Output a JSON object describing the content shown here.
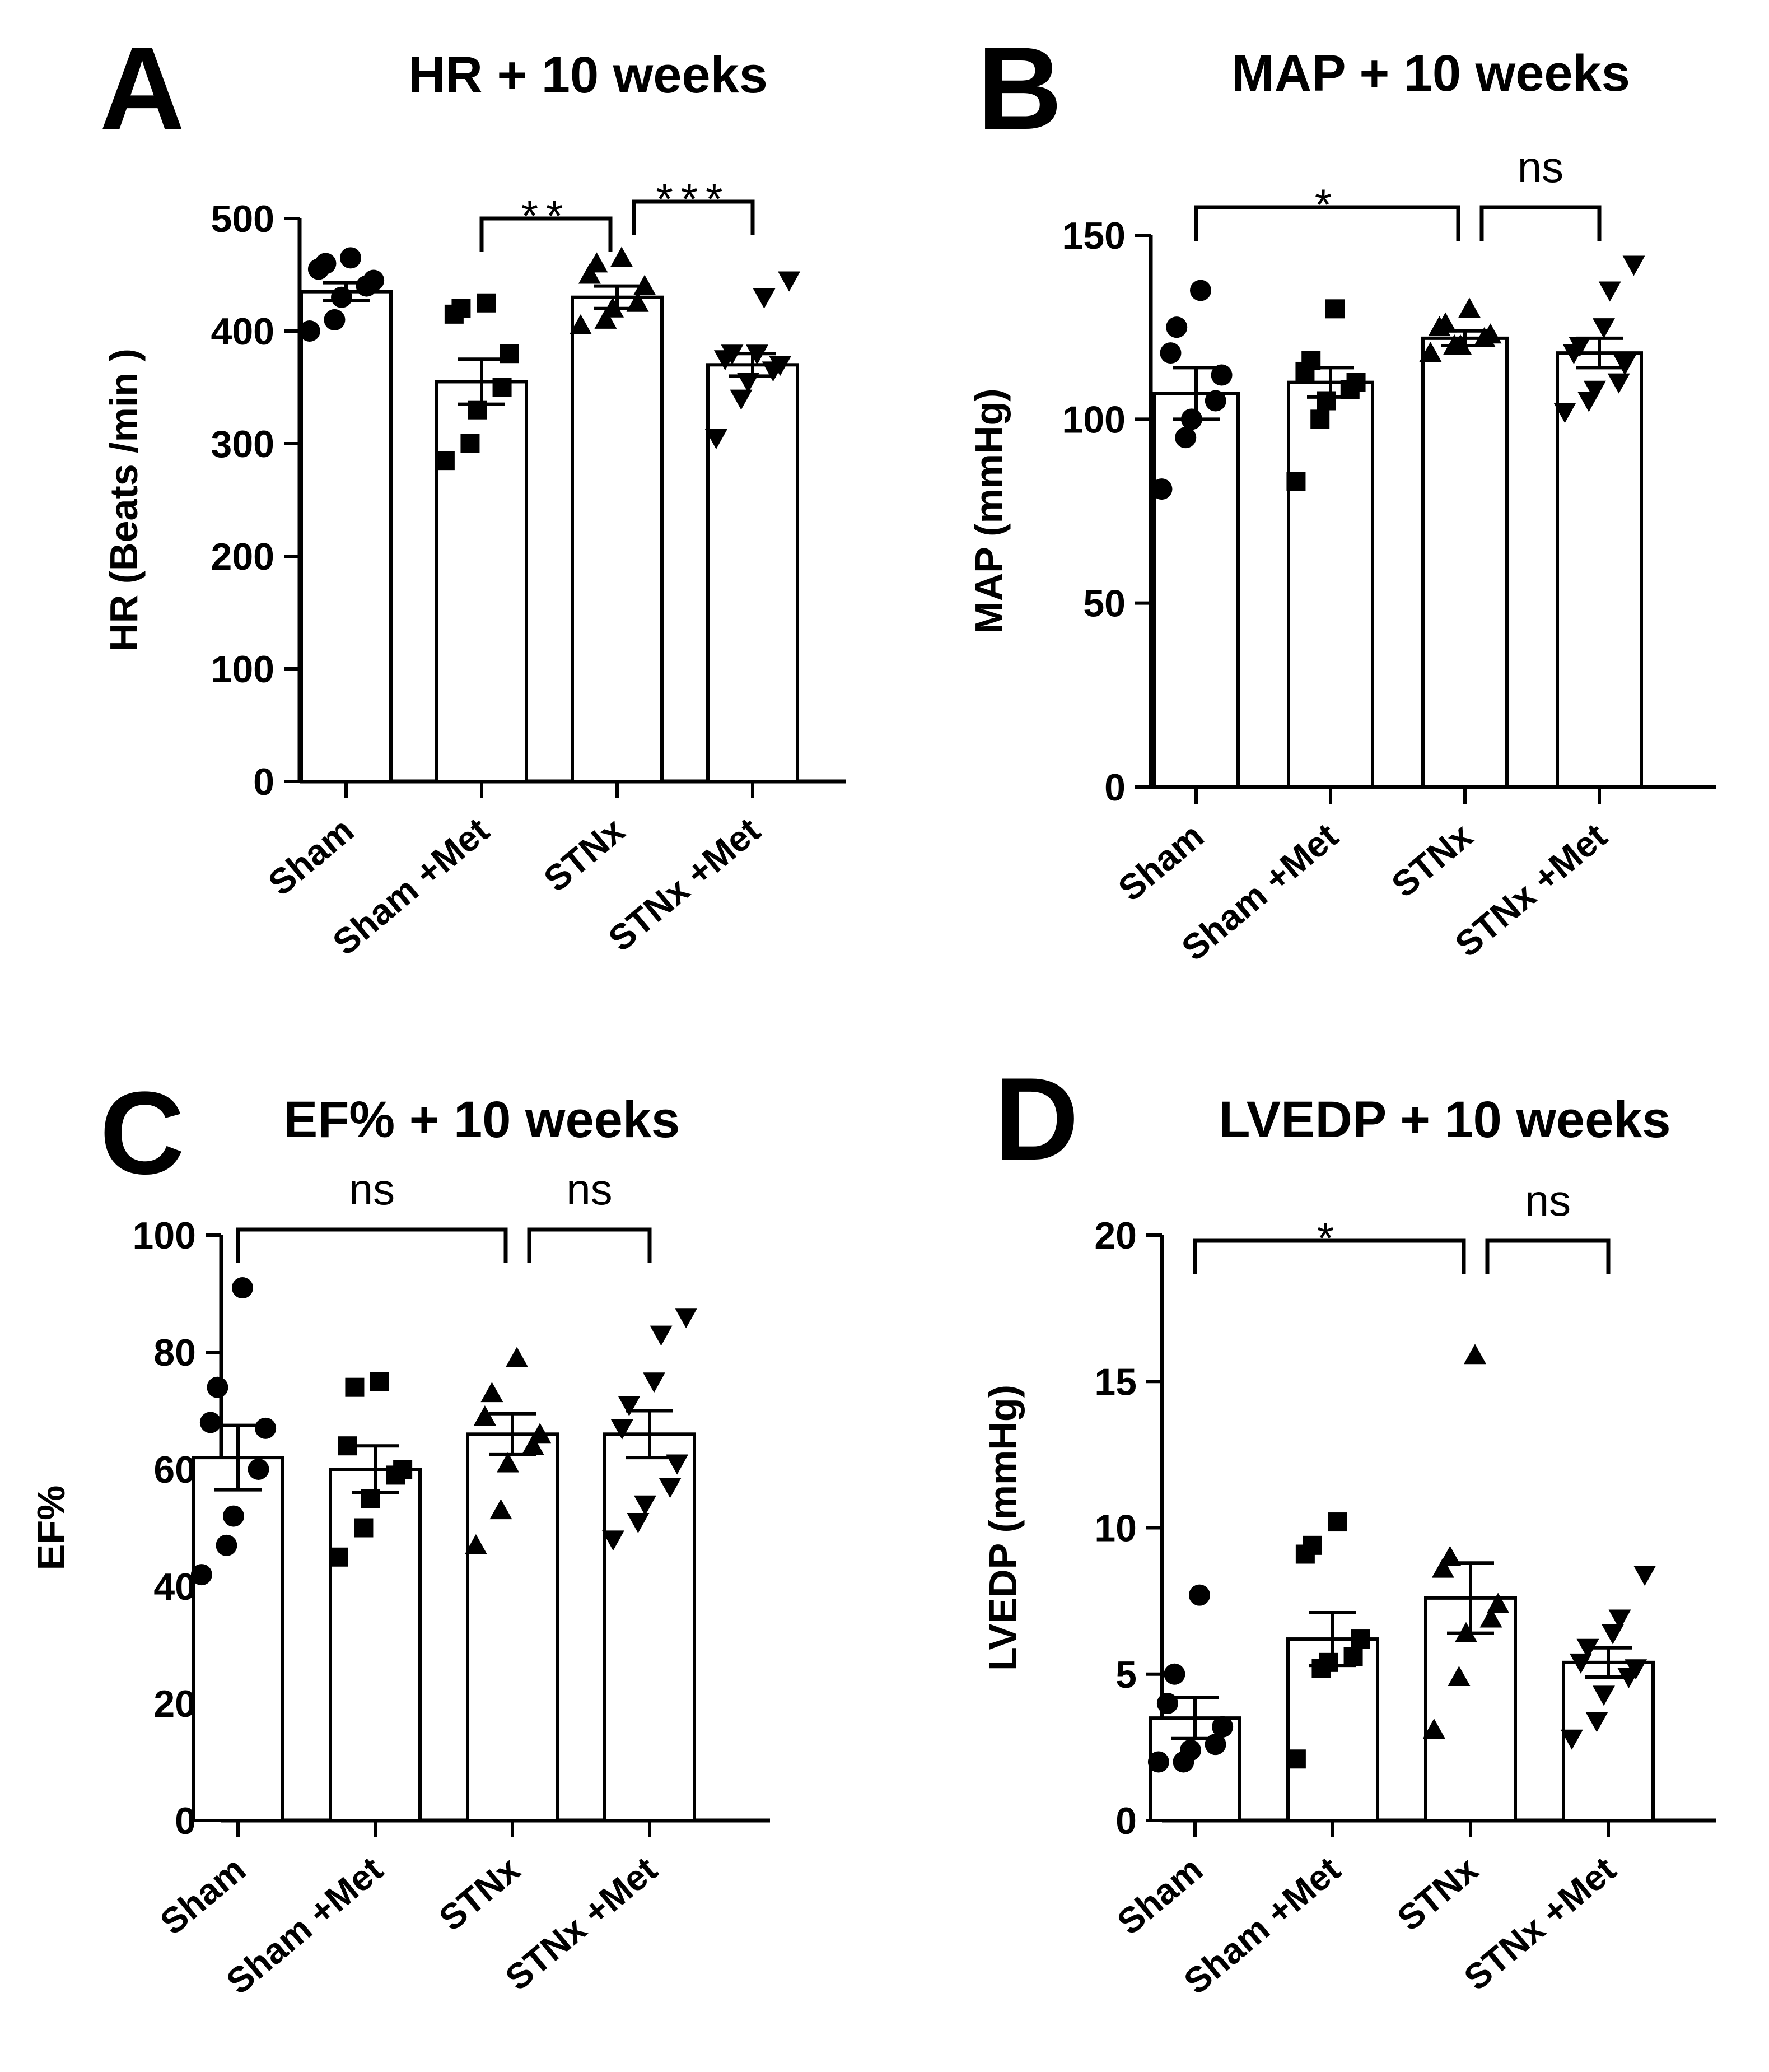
{
  "figure_title": "",
  "chart_data": [
    {
      "panel": "A",
      "type": "bar",
      "title": "HR + 10 weeks",
      "xlabel": "",
      "ylabel": "HR (Beats /min )",
      "ylim": [
        0,
        500
      ],
      "yticks": [
        0,
        100,
        200,
        300,
        400,
        500
      ],
      "categories": [
        "Sham",
        "Sham +Met",
        "STNx",
        "STNx +Met"
      ],
      "markers": [
        "circle",
        "square",
        "triangle-up",
        "triangle-down"
      ],
      "values": [
        435,
        355,
        430,
        370
      ],
      "errors": [
        8,
        20,
        10,
        10
      ],
      "points": [
        [
          400,
          410,
          430,
          440,
          445,
          455,
          460,
          465
        ],
        [
          285,
          300,
          330,
          350,
          380,
          415,
          420,
          425
        ],
        [
          405,
          410,
          420,
          425,
          440,
          450,
          460,
          465
        ],
        [
          305,
          340,
          355,
          365,
          370,
          375,
          380,
          380,
          430,
          445
        ]
      ],
      "comparisons": [
        {
          "from": 1,
          "to": 2,
          "label": "**"
        },
        {
          "from": 2,
          "to": 3,
          "label": "***"
        }
      ]
    },
    {
      "panel": "B",
      "type": "bar",
      "title": "MAP + 10 weeks",
      "xlabel": "",
      "ylabel": "MAP (mmHg)",
      "ylim": [
        0,
        150
      ],
      "yticks": [
        0,
        50,
        100,
        150
      ],
      "categories": [
        "Sham",
        "Sham +Met",
        "STNx",
        "STNx +Met"
      ],
      "markers": [
        "circle",
        "square",
        "triangle-up",
        "triangle-down"
      ],
      "values": [
        107,
        110,
        122,
        118
      ],
      "errors": [
        7,
        4,
        2,
        4
      ],
      "points": [
        [
          81,
          95,
          100,
          105,
          112,
          118,
          125,
          135
        ],
        [
          83,
          100,
          105,
          108,
          110,
          113,
          116,
          130
        ],
        [
          118,
          120,
          120,
          122,
          123,
          125,
          126,
          130
        ],
        [
          102,
          105,
          108,
          110,
          115,
          118,
          120,
          125,
          135,
          142
        ]
      ],
      "comparisons": [
        {
          "from": 0,
          "to": 2,
          "label": "*"
        },
        {
          "from": 2,
          "to": 3,
          "label": "ns"
        }
      ]
    },
    {
      "panel": "C",
      "type": "bar",
      "title": "EF% + 10 weeks",
      "xlabel": "",
      "ylabel": "EF%",
      "ylim": [
        0,
        100
      ],
      "yticks": [
        0,
        20,
        40,
        60,
        80,
        100
      ],
      "categories": [
        "Sham",
        "Sham +Met",
        "STNx",
        "STNx +Met"
      ],
      "markers": [
        "circle",
        "square",
        "triangle-up",
        "triangle-down"
      ],
      "values": [
        62,
        60,
        66,
        66
      ],
      "errors": [
        5.5,
        4,
        3.5,
        4
      ],
      "points": [
        [
          42,
          47,
          52,
          60,
          67,
          68,
          74,
          91
        ],
        [
          45,
          50,
          55,
          59,
          60,
          64,
          74,
          75
        ],
        [
          47,
          53,
          61,
          64,
          66,
          69,
          73,
          79
        ],
        [
          48,
          51,
          54,
          57,
          61,
          67,
          71,
          75,
          83,
          86
        ]
      ],
      "comparisons": [
        {
          "from": 0,
          "to": 2,
          "label": "ns"
        },
        {
          "from": 2,
          "to": 3,
          "label": "ns"
        }
      ]
    },
    {
      "panel": "D",
      "type": "bar",
      "title": "LVEDP + 10 weeks",
      "xlabel": "",
      "ylabel": "LVEDP (mmHg)",
      "ylim": [
        0,
        20
      ],
      "yticks": [
        0,
        5,
        10,
        15,
        20
      ],
      "categories": [
        "Sham",
        "Sham +Met",
        "STNx",
        "STNx +Met"
      ],
      "markers": [
        "circle",
        "square",
        "triangle-up",
        "triangle-down"
      ],
      "values": [
        3.5,
        6.2,
        7.6,
        5.4
      ],
      "errors": [
        0.7,
        0.9,
        1.2,
        0.5
      ],
      "points": [
        [
          2.0,
          2.0,
          2.4,
          2.6,
          3.2,
          4.0,
          5.0,
          7.7
        ],
        [
          2.1,
          5.2,
          5.4,
          5.6,
          6.2,
          9.1,
          9.4,
          10.2
        ],
        [
          3.1,
          4.9,
          6.4,
          6.9,
          7.4,
          8.6,
          9.0,
          15.9
        ],
        [
          2.8,
          3.4,
          4.3,
          4.9,
          5.2,
          5.4,
          5.9,
          6.4,
          6.9,
          8.4
        ]
      ],
      "comparisons": [
        {
          "from": 0,
          "to": 2,
          "label": "*"
        },
        {
          "from": 2,
          "to": 3,
          "label": "ns"
        }
      ]
    }
  ]
}
